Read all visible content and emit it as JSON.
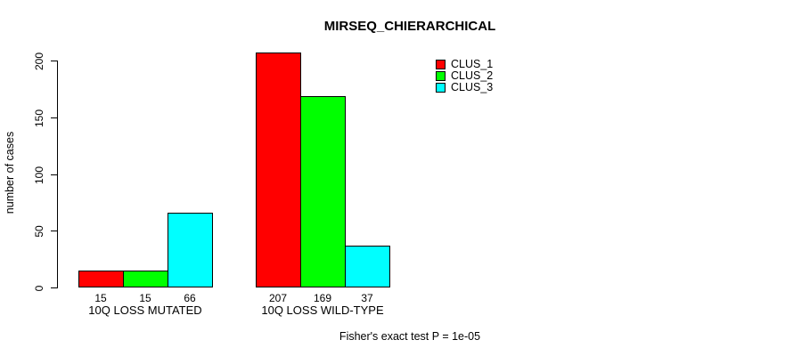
{
  "chart_data": {
    "type": "bar",
    "title": "MIRSEQ_CHIERARCHICAL",
    "categories": [
      "10Q LOSS MUTATED",
      "10Q LOSS WILD-TYPE"
    ],
    "series": [
      {
        "name": "CLUS_1",
        "color": "#ff0000",
        "values": [
          15,
          207
        ]
      },
      {
        "name": "CLUS_2",
        "color": "#00ff00",
        "values": [
          15,
          169
        ]
      },
      {
        "name": "CLUS_3",
        "color": "#00ffff",
        "values": [
          66,
          37
        ]
      }
    ],
    "bar_value_labels": [
      [
        15,
        15,
        66
      ],
      [
        207,
        169,
        37
      ]
    ],
    "xlabel": "",
    "ylabel": "number of cases",
    "yticks": [
      0,
      50,
      100,
      150,
      200
    ],
    "ylim": [
      0,
      215
    ],
    "grid": false,
    "legend_position": "top-right",
    "bar_border_color": "#000000",
    "annotation": "Fisher's exact test P = 1e-05"
  }
}
